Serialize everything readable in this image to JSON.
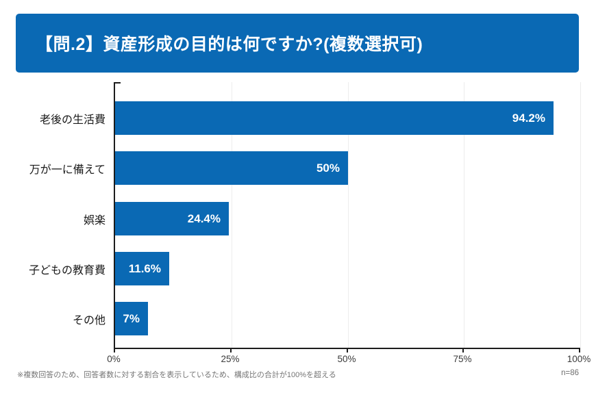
{
  "header": {
    "title": "【問.2】資産形成の目的は何ですか?(複数選択可)"
  },
  "chart_data": {
    "type": "bar",
    "orientation": "horizontal",
    "title": "【問.2】資産形成の目的は何ですか?(複数選択可)",
    "categories": [
      "老後の生活費",
      "万が一に備えて",
      "娯楽",
      "子どもの教育費",
      "その他"
    ],
    "values": [
      94.2,
      50,
      24.4,
      11.6,
      7
    ],
    "value_labels": [
      "94.2%",
      "50%",
      "24.4%",
      "11.6%",
      "7%"
    ],
    "x_tick_labels": [
      "0%",
      "25%",
      "50%",
      "75%",
      "100%"
    ],
    "x_tick_values": [
      0,
      25,
      50,
      75,
      100
    ],
    "xlim": [
      0,
      100
    ],
    "grid": true,
    "legend": "none",
    "bar_color": "#0a69b4"
  },
  "footer": {
    "note": "※複数回答のため、回答者数に対する割合を表示しているため、構成比の合計が100%を超える",
    "sample": "n=86"
  },
  "colors": {
    "accent": "#0a69b4",
    "grid": "#ececec",
    "axis": "#1c1c1c",
    "note": "#757575",
    "value_text": "#ffffff"
  }
}
